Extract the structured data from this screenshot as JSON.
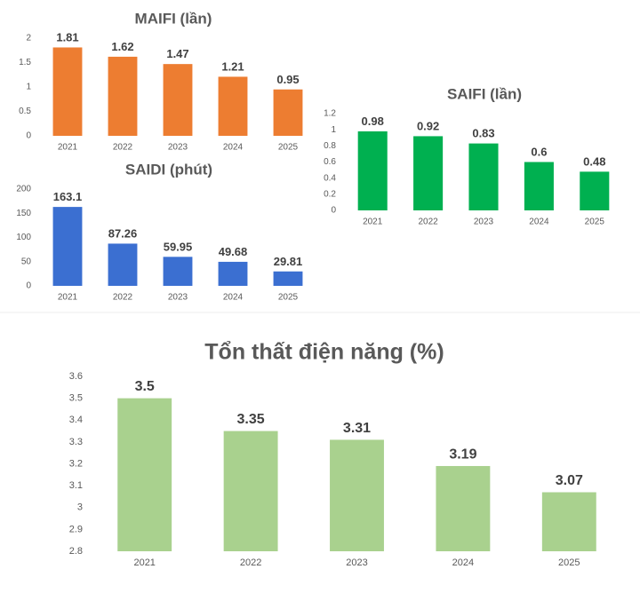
{
  "chart_data": [
    {
      "type": "bar",
      "title": "MAIFI (lần)",
      "categories": [
        "2021",
        "2022",
        "2023",
        "2024",
        "2025"
      ],
      "values": [
        1.81,
        1.62,
        1.47,
        1.21,
        0.95
      ],
      "color": "#ed7d31",
      "ylim": [
        0,
        2
      ],
      "yticks": [
        0,
        0.5,
        1,
        1.5,
        2
      ]
    },
    {
      "type": "bar",
      "title": "SAIDI (phút)",
      "categories": [
        "2021",
        "2022",
        "2023",
        "2024",
        "2025"
      ],
      "values": [
        163.1,
        87.26,
        59.95,
        49.68,
        29.81
      ],
      "color": "#3b6fd1",
      "ylim": [
        0,
        200
      ],
      "yticks": [
        0,
        50,
        100,
        150,
        200
      ]
    },
    {
      "type": "bar",
      "title": "SAIFI (lần)",
      "categories": [
        "2021",
        "2022",
        "2023",
        "2024",
        "2025"
      ],
      "values": [
        0.98,
        0.92,
        0.83,
        0.6,
        0.48
      ],
      "color": "#00b050",
      "ylim": [
        0,
        1.2
      ],
      "yticks": [
        0,
        0.2,
        0.4,
        0.6,
        0.8,
        1,
        1.2
      ]
    },
    {
      "type": "bar",
      "title": "Tổn thất điện năng (%)",
      "categories": [
        "2021",
        "2022",
        "2023",
        "2024",
        "2025"
      ],
      "values": [
        3.5,
        3.35,
        3.31,
        3.19,
        3.07
      ],
      "color": "#a9d18e",
      "ylim": [
        2.8,
        3.6
      ],
      "yticks": [
        2.8,
        2.9,
        3,
        3.1,
        3.2,
        3.3,
        3.4,
        3.5,
        3.6
      ]
    }
  ]
}
